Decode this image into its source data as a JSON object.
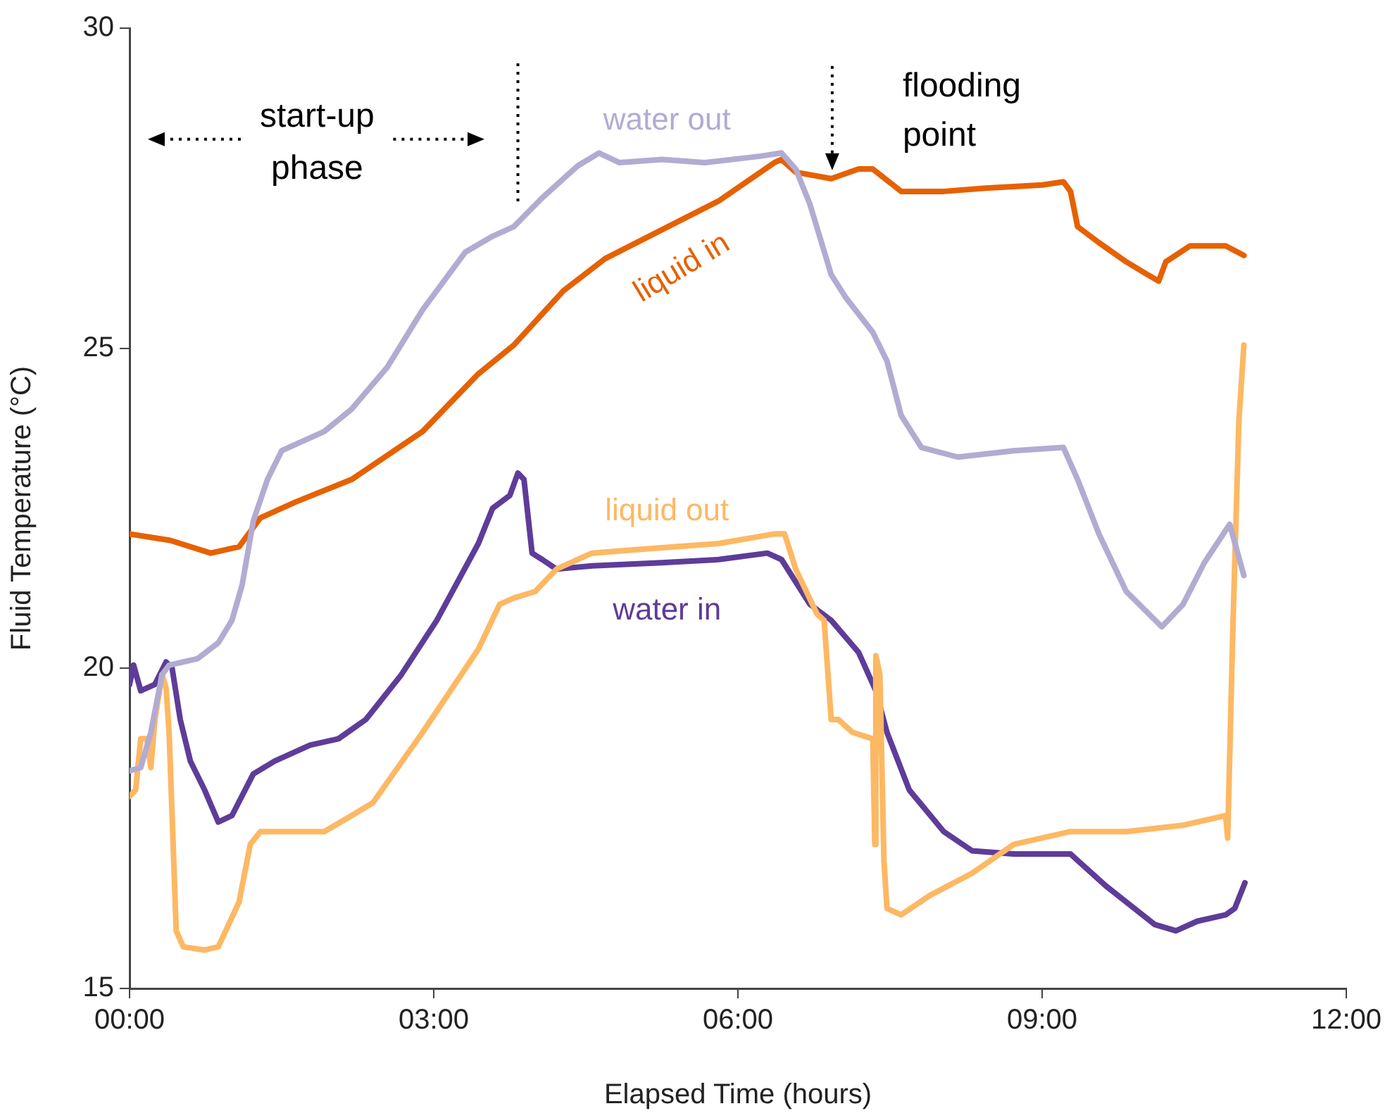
{
  "chart_data": {
    "type": "line",
    "xlabel": "Elapsed Time (hours)",
    "ylabel": "Fluid Temperature (°C)",
    "xlim": [
      0,
      12
    ],
    "xticks": [
      {
        "value": 0,
        "label": "00:00"
      },
      {
        "value": 3,
        "label": "03:00"
      },
      {
        "value": 6,
        "label": "06:00"
      },
      {
        "value": 9,
        "label": "09:00"
      },
      {
        "value": 12,
        "label": "12:00"
      }
    ],
    "ylim": [
      15,
      30
    ],
    "yticks": [
      15,
      20,
      25,
      30
    ],
    "legend": false,
    "marker": "none",
    "line_style": "solid",
    "annotations": [
      "start-up phase",
      {
        "text": "flooding point",
        "x": 6.93,
        "y": 27.65
      }
    ],
    "ref_lines": [
      {
        "axis": "x",
        "value": 3.83,
        "color": "#000000",
        "line_style": "dotted"
      }
    ],
    "series": [
      {
        "name": "water out",
        "color": "#b2abd2",
        "x": [
          0,
          0.11,
          0.21,
          0.32,
          0.39,
          0.67,
          0.875,
          1.01,
          1.11,
          1.22,
          1.36,
          1.5,
          1.92,
          2.19,
          2.54,
          2.89,
          3.31,
          3.58,
          3.79,
          4.07,
          4.42,
          4.63,
          4.83,
          5.25,
          5.67,
          6.22,
          6.43,
          6.57,
          6.71,
          6.92,
          7.06,
          7.33,
          7.47,
          7.61,
          7.81,
          8.17,
          8.72,
          9.21,
          9.35,
          9.56,
          9.83,
          10.18,
          10.39,
          10.6,
          10.85,
          10.99
        ],
        "values": [
          18.4,
          18.45,
          19.0,
          19.9,
          20.05,
          20.15,
          20.4,
          20.75,
          21.3,
          22.3,
          22.95,
          23.4,
          23.7,
          24.05,
          24.7,
          25.6,
          26.5,
          26.75,
          26.9,
          27.35,
          27.85,
          28.05,
          27.9,
          27.95,
          27.9,
          28.0,
          28.05,
          27.8,
          27.25,
          26.15,
          25.8,
          25.25,
          24.8,
          23.95,
          23.45,
          23.3,
          23.4,
          23.45,
          22.95,
          22.1,
          21.2,
          20.65,
          21.0,
          21.65,
          22.25,
          21.45
        ]
      },
      {
        "name": "liquid in",
        "color": "#e66101",
        "x": [
          0,
          0.4,
          0.8,
          1.08,
          1.29,
          1.64,
          2.19,
          2.89,
          3.44,
          3.79,
          4.28,
          4.69,
          5.25,
          5.81,
          6.36,
          6.43,
          6.57,
          6.92,
          7.19,
          7.33,
          7.61,
          8.03,
          8.44,
          9.0,
          9.21,
          9.28,
          9.35,
          9.56,
          9.83,
          10.04,
          10.15,
          10.22,
          10.46,
          10.81,
          10.99
        ],
        "values": [
          22.1,
          22.0,
          21.8,
          21.9,
          22.35,
          22.6,
          22.95,
          23.7,
          24.6,
          25.05,
          25.9,
          26.4,
          26.85,
          27.3,
          27.9,
          27.95,
          27.75,
          27.65,
          27.8,
          27.8,
          27.45,
          27.45,
          27.5,
          27.55,
          27.6,
          27.45,
          26.9,
          26.65,
          26.35,
          26.15,
          26.05,
          26.35,
          26.6,
          26.6,
          26.45
        ]
      },
      {
        "name": "liquid out",
        "color": "#fdb863",
        "x": [
          0,
          0.06,
          0.11,
          0.17,
          0.21,
          0.25,
          0.32,
          0.36,
          0.39,
          0.43,
          0.46,
          0.53,
          0.74,
          0.875,
          1.08,
          1.19,
          1.29,
          1.5,
          1.92,
          2.19,
          2.4,
          2.89,
          3.44,
          3.65,
          3.79,
          4.0,
          4.21,
          4.56,
          4.97,
          5.39,
          5.81,
          6.36,
          6.46,
          6.57,
          6.78,
          6.85,
          6.92,
          6.99,
          7.13,
          7.33,
          7.35,
          7.36,
          7.4,
          7.44,
          7.47,
          7.61,
          7.89,
          8.31,
          8.72,
          9.28,
          9.83,
          10.39,
          10.81,
          10.83,
          10.88,
          10.94,
          10.99
        ],
        "values": [
          18.0,
          18.1,
          18.9,
          18.9,
          18.45,
          19.2,
          19.9,
          19.7,
          19.0,
          17.25,
          15.9,
          15.65,
          15.6,
          15.65,
          16.35,
          17.25,
          17.45,
          17.45,
          17.45,
          17.7,
          17.9,
          19.0,
          20.3,
          21.0,
          21.1,
          21.2,
          21.55,
          21.8,
          21.85,
          21.9,
          21.95,
          22.1,
          22.1,
          21.55,
          20.85,
          20.75,
          19.2,
          19.2,
          19.0,
          18.9,
          17.25,
          20.2,
          19.9,
          17.0,
          16.25,
          16.15,
          16.45,
          16.8,
          17.25,
          17.45,
          17.45,
          17.55,
          17.7,
          17.35,
          20.55,
          23.85,
          25.05
        ]
      },
      {
        "name": "water in",
        "color": "#5e3c99",
        "x": [
          0,
          0.04,
          0.11,
          0.25,
          0.36,
          0.42,
          0.5,
          0.6,
          0.74,
          0.875,
          1.01,
          1.22,
          1.43,
          1.78,
          2.06,
          2.33,
          2.68,
          3.03,
          3.44,
          3.58,
          3.75,
          3.83,
          3.89,
          3.97,
          4.07,
          4.21,
          4.56,
          5.25,
          5.81,
          6.29,
          6.43,
          6.71,
          6.92,
          7.19,
          7.36,
          7.47,
          7.69,
          8.03,
          8.31,
          8.72,
          9.28,
          9.63,
          10.11,
          10.32,
          10.53,
          10.81,
          10.9,
          11.0
        ],
        "values": [
          19.75,
          20.05,
          19.65,
          19.75,
          20.1,
          20.0,
          19.2,
          18.55,
          18.1,
          17.6,
          17.7,
          18.35,
          18.55,
          18.8,
          18.9,
          19.2,
          19.9,
          20.75,
          21.95,
          22.5,
          22.7,
          23.05,
          22.95,
          21.8,
          21.7,
          21.55,
          21.6,
          21.65,
          21.7,
          21.8,
          21.7,
          21.0,
          20.75,
          20.25,
          19.65,
          19.0,
          18.1,
          17.45,
          17.15,
          17.1,
          17.1,
          16.6,
          16.0,
          15.9,
          16.05,
          16.15,
          16.25,
          16.65
        ]
      }
    ]
  }
}
